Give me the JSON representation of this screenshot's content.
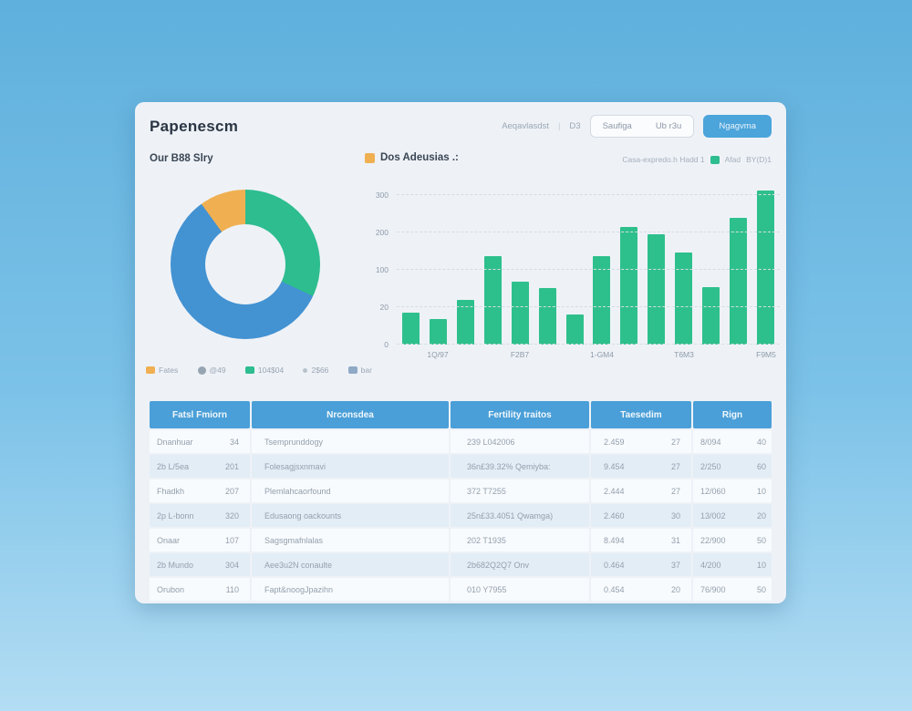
{
  "header": {
    "title": "Papenescm",
    "meta_text": "Aeqavlasdst",
    "meta_divider": "|",
    "meta_value": "D3",
    "segmented": [
      "Saufiga",
      "Ub r3u"
    ],
    "primary_button": "Ngagvma"
  },
  "donut_section": {
    "title": "Our B88 Slry",
    "legend": [
      {
        "label": "Fates",
        "color": "#f0b052",
        "shape": "square"
      },
      {
        "label": "@49",
        "color": "#97a4b2",
        "shape": "circle"
      },
      {
        "label": "104$04",
        "color": "#2dbd8e",
        "shape": "square"
      },
      {
        "label": "2$66",
        "color": "#b7c2cd",
        "shape": "dot"
      },
      {
        "label": "bar",
        "color": "#8fa9c6",
        "shape": "square"
      }
    ]
  },
  "bar_section": {
    "swatch_color": "#f0b052",
    "title": "Dos Adeusias .:",
    "right_meta": "Casa-expredo.h Hadd 1",
    "right_swatch_color": "#2ebd8f",
    "right_label": "Afad",
    "right_value": "BY(D)1"
  },
  "chart_data": [
    {
      "type": "pie",
      "title": "Our B88 Slry",
      "donut": true,
      "legend_position": "bottom",
      "slices": [
        {
          "label": "104$04",
          "value": 32,
          "color": "#2dbd8e"
        },
        {
          "label": "bar",
          "value": 58,
          "color": "#4392d2"
        },
        {
          "label": "Fates",
          "value": 10,
          "color": "#f0b052"
        }
      ]
    },
    {
      "type": "bar",
      "title": "Dos Adeusias .:",
      "bar_color": "#2ec08c",
      "grid": true,
      "values": [
        64,
        51,
        90,
        178,
        126,
        113,
        61,
        178,
        236,
        222,
        184,
        115,
        254,
        310
      ],
      "x_tick_labels": [
        "1Q/97",
        "F2B7",
        "1-GM4",
        "T6M3",
        "F9M5"
      ],
      "y_tick_labels": [
        "0",
        "20",
        "100",
        "200",
        "300"
      ],
      "ylim": [
        0,
        320
      ],
      "y_scale_max": 300
    }
  ],
  "table": {
    "headers": [
      "Fatsl Fmiorn",
      "Nrconsdea",
      "Fertility traitos",
      "Taesedim",
      "Rign"
    ],
    "rows": [
      [
        "Dnanhuar",
        "34",
        "Tsemprunddogy",
        "239 L042006",
        "2.459",
        "27",
        "8/094",
        "40"
      ],
      [
        "2b L/5ea",
        "201",
        "Folesagjsxnmavi",
        "36n£39.32% Qemiyba:",
        "9.454",
        "27",
        "2/250",
        "60"
      ],
      [
        "Fhadkh",
        "207",
        "Plemlahcaorfound",
        "372 T7255",
        "2.444",
        "27",
        "12/060",
        "10"
      ],
      [
        "2p L-bonn",
        "320",
        "Edusaong oackounts",
        "25n£33.4051 Qwamga)",
        "2.460",
        "30",
        "13/002",
        "20"
      ],
      [
        "Onaar",
        "107",
        "Sagsgmafnlalas",
        "202 T1935",
        "8.494",
        "31",
        "22/900",
        "50"
      ],
      [
        "2b Mundo",
        "304",
        "Aee3u2N conaulte",
        "2b682Q2Q7 Onv",
        "0.464",
        "37",
        "4/200",
        "10"
      ],
      [
        "Orubon",
        "110",
        "Fapt&noogJpazihn",
        "010 Y7955",
        "0.454",
        "20",
        "76/900",
        "50"
      ]
    ]
  }
}
